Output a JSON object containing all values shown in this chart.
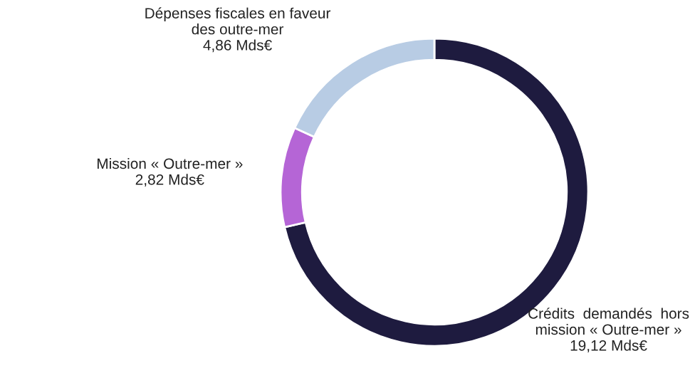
{
  "chart_data": {
    "type": "donut",
    "categories": [
      "Crédits  demandés  hors\nmission « Outre-mer »",
      "Mission « Outre-mer »",
      "Dépenses fiscales en faveur\ndes outre-mer"
    ],
    "values": [
      19.12,
      2.82,
      4.86
    ],
    "value_labels": [
      "19,12 Mds€",
      "2,82 Mds€",
      "4,86 Mds€"
    ],
    "colors": [
      "#1e1b3f",
      "#b565d6",
      "#b8cce4"
    ],
    "legend": false
  }
}
